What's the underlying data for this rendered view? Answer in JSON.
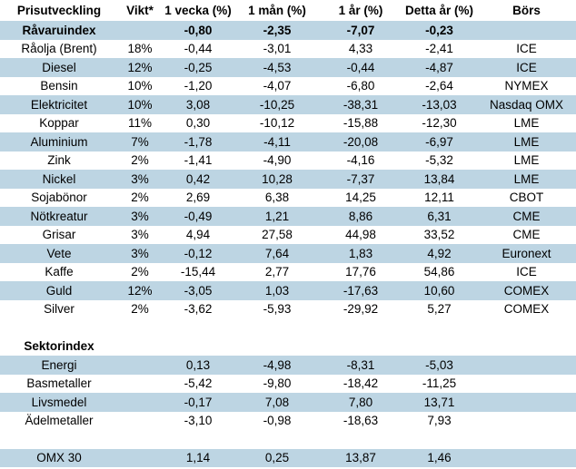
{
  "colors": {
    "row_shade": "#bdd5e3",
    "negative_text": "#ee0000",
    "positive_text": "#000000",
    "background": "#ffffff"
  },
  "chart_data": {
    "type": "table",
    "columns": [
      "Prisutveckling",
      "Vikt*",
      "1 vecka (%)",
      "1 mån (%)",
      "1 år (%)",
      "Detta år (%)",
      "Börs"
    ],
    "rows": [
      {
        "label": "Råvaruindex",
        "weight": "",
        "values": [
          "-0,80",
          "-2,35",
          "-7,07",
          "-0,23"
        ],
        "exchange": "",
        "bold": true,
        "shaded": true
      },
      {
        "label": "Råolja (Brent)",
        "weight": "18%",
        "values": [
          "-0,44",
          "-3,01",
          "4,33",
          "-2,41"
        ],
        "exchange": "ICE",
        "bold": false,
        "shaded": false
      },
      {
        "label": "Diesel",
        "weight": "12%",
        "values": [
          "-0,25",
          "-4,53",
          "-0,44",
          "-4,87"
        ],
        "exchange": "ICE",
        "bold": false,
        "shaded": true
      },
      {
        "label": "Bensin",
        "weight": "10%",
        "values": [
          "-1,20",
          "-4,07",
          "-6,80",
          "-2,64"
        ],
        "exchange": "NYMEX",
        "bold": false,
        "shaded": false
      },
      {
        "label": "Elektricitet",
        "weight": "10%",
        "values": [
          "3,08",
          "-10,25",
          "-38,31",
          "-13,03"
        ],
        "exchange": "Nasdaq OMX",
        "bold": false,
        "shaded": true
      },
      {
        "label": "Koppar",
        "weight": "11%",
        "values": [
          "0,30",
          "-10,12",
          "-15,88",
          "-12,30"
        ],
        "exchange": "LME",
        "bold": false,
        "shaded": false
      },
      {
        "label": "Aluminium",
        "weight": "7%",
        "values": [
          "-1,78",
          "-4,11",
          "-20,08",
          "-6,97"
        ],
        "exchange": "LME",
        "bold": false,
        "shaded": true
      },
      {
        "label": "Zink",
        "weight": "2%",
        "values": [
          "-1,41",
          "-4,90",
          "-4,16",
          "-5,32"
        ],
        "exchange": "LME",
        "bold": false,
        "shaded": false
      },
      {
        "label": "Nickel",
        "weight": "3%",
        "values": [
          "0,42",
          "10,28",
          "-7,37",
          "13,84"
        ],
        "exchange": "LME",
        "bold": false,
        "shaded": true
      },
      {
        "label": "Sojabönor",
        "weight": "2%",
        "values": [
          "2,69",
          "6,38",
          "14,25",
          "12,11"
        ],
        "exchange": "CBOT",
        "bold": false,
        "shaded": false
      },
      {
        "label": "Nötkreatur",
        "weight": "3%",
        "values": [
          "-0,49",
          "1,21",
          "8,86",
          "6,31"
        ],
        "exchange": "CME",
        "bold": false,
        "shaded": true
      },
      {
        "label": "Grisar",
        "weight": "3%",
        "values": [
          "4,94",
          "27,58",
          "44,98",
          "33,52"
        ],
        "exchange": "CME",
        "bold": false,
        "shaded": false
      },
      {
        "label": "Vete",
        "weight": "3%",
        "values": [
          "-0,12",
          "7,64",
          "1,83",
          "4,92"
        ],
        "exchange": "Euronext",
        "bold": false,
        "shaded": true
      },
      {
        "label": "Kaffe",
        "weight": "2%",
        "values": [
          "-15,44",
          "2,77",
          "17,76",
          "54,86"
        ],
        "exchange": "ICE",
        "bold": false,
        "shaded": false
      },
      {
        "label": "Guld",
        "weight": "12%",
        "values": [
          "-3,05",
          "1,03",
          "-17,63",
          "10,60"
        ],
        "exchange": "COMEX",
        "bold": false,
        "shaded": true
      },
      {
        "label": "Silver",
        "weight": "2%",
        "values": [
          "-3,62",
          "-5,93",
          "-29,92",
          "5,27"
        ],
        "exchange": "COMEX",
        "bold": false,
        "shaded": false
      },
      {
        "label": "",
        "weight": "",
        "values": [
          "",
          "",
          "",
          ""
        ],
        "exchange": "",
        "bold": false,
        "shaded": false
      },
      {
        "label": "Sektorindex",
        "weight": "",
        "values": [
          "",
          "",
          "",
          ""
        ],
        "exchange": "",
        "bold": true,
        "shaded": false
      },
      {
        "label": "Energi",
        "weight": "",
        "values": [
          "0,13",
          "-4,98",
          "-8,31",
          "-5,03"
        ],
        "exchange": "",
        "bold": false,
        "shaded": true
      },
      {
        "label": "Basmetaller",
        "weight": "",
        "values": [
          "-5,42",
          "-9,80",
          "-18,42",
          "-11,25"
        ],
        "exchange": "",
        "bold": false,
        "shaded": false
      },
      {
        "label": "Livsmedel",
        "weight": "",
        "values": [
          "-0,17",
          "7,08",
          "7,80",
          "13,71"
        ],
        "exchange": "",
        "bold": false,
        "shaded": true
      },
      {
        "label": "Ädelmetaller",
        "weight": "",
        "values": [
          "-3,10",
          "-0,98",
          "-18,63",
          "7,93"
        ],
        "exchange": "",
        "bold": false,
        "shaded": false
      },
      {
        "label": "",
        "weight": "",
        "values": [
          "",
          "",
          "",
          ""
        ],
        "exchange": "",
        "bold": false,
        "shaded": false
      },
      {
        "label": "OMX 30",
        "weight": "",
        "values": [
          "1,14",
          "0,25",
          "13,87",
          "1,46"
        ],
        "exchange": "",
        "bold": false,
        "shaded": true
      }
    ]
  }
}
